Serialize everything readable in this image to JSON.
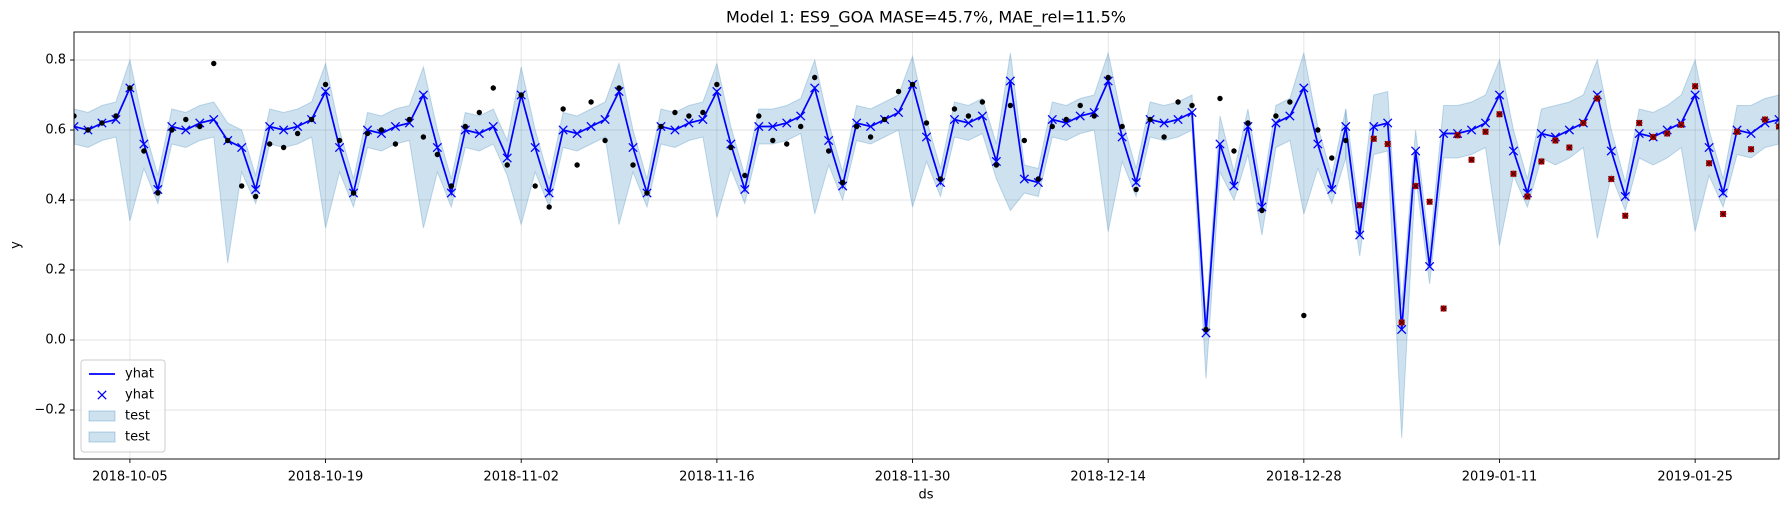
{
  "chart_data": {
    "type": "line",
    "title": "Model 1: ES9_GOA MASE=45.7%, MAE_rel=11.5%",
    "xlabel": "ds",
    "ylabel": "y",
    "grid": true,
    "x": [
      "2018-10-01",
      "2018-10-02",
      "2018-10-03",
      "2018-10-04",
      "2018-10-05",
      "2018-10-06",
      "2018-10-07",
      "2018-10-08",
      "2018-10-09",
      "2018-10-10",
      "2018-10-11",
      "2018-10-12",
      "2018-10-13",
      "2018-10-14",
      "2018-10-15",
      "2018-10-16",
      "2018-10-17",
      "2018-10-18",
      "2018-10-19",
      "2018-10-20",
      "2018-10-21",
      "2018-10-22",
      "2018-10-23",
      "2018-10-24",
      "2018-10-25",
      "2018-10-26",
      "2018-10-27",
      "2018-10-28",
      "2018-10-29",
      "2018-10-30",
      "2018-10-31",
      "2018-11-01",
      "2018-11-02",
      "2018-11-03",
      "2018-11-04",
      "2018-11-05",
      "2018-11-06",
      "2018-11-07",
      "2018-11-08",
      "2018-11-09",
      "2018-11-10",
      "2018-11-11",
      "2018-11-12",
      "2018-11-13",
      "2018-11-14",
      "2018-11-15",
      "2018-11-16",
      "2018-11-17",
      "2018-11-18",
      "2018-11-19",
      "2018-11-20",
      "2018-11-21",
      "2018-11-22",
      "2018-11-23",
      "2018-11-24",
      "2018-11-25",
      "2018-11-26",
      "2018-11-27",
      "2018-11-28",
      "2018-11-29",
      "2018-11-30",
      "2018-12-01",
      "2018-12-02",
      "2018-12-03",
      "2018-12-04",
      "2018-12-05",
      "2018-12-06",
      "2018-12-07",
      "2018-12-08",
      "2018-12-09",
      "2018-12-10",
      "2018-12-11",
      "2018-12-12",
      "2018-12-13",
      "2018-12-14",
      "2018-12-15",
      "2018-12-16",
      "2018-12-17",
      "2018-12-18",
      "2018-12-19",
      "2018-12-20",
      "2018-12-21",
      "2018-12-22",
      "2018-12-23",
      "2018-12-24",
      "2018-12-25",
      "2018-12-26",
      "2018-12-27",
      "2018-12-28",
      "2018-12-29",
      "2018-12-30",
      "2018-12-31",
      "2019-01-01",
      "2019-01-02",
      "2019-01-03",
      "2019-01-04",
      "2019-01-05",
      "2019-01-06",
      "2019-01-07",
      "2019-01-08",
      "2019-01-09",
      "2019-01-10",
      "2019-01-11",
      "2019-01-12",
      "2019-01-13",
      "2019-01-14",
      "2019-01-15",
      "2019-01-16",
      "2019-01-17",
      "2019-01-18",
      "2019-01-19",
      "2019-01-20",
      "2019-01-21",
      "2019-01-22",
      "2019-01-23",
      "2019-01-24",
      "2019-01-25",
      "2019-01-26",
      "2019-01-27",
      "2019-01-28",
      "2019-01-29",
      "2019-01-30",
      "2019-01-31"
    ],
    "xlim": [
      "2018-10-01",
      "2019-01-31"
    ],
    "xticks": [
      "2018-10-05",
      "2018-10-19",
      "2018-11-02",
      "2018-11-16",
      "2018-11-30",
      "2018-12-14",
      "2018-12-28",
      "2019-01-11",
      "2019-01-25"
    ],
    "ylim": [
      -0.34,
      0.88
    ],
    "yticks": [
      {
        "value": -0.2,
        "label": "−0.2"
      },
      {
        "value": 0,
        "label": "0.0"
      },
      0.2,
      0.4,
      0.6,
      0.8
    ],
    "legend": {
      "loc": "lower left",
      "labels": [
        "yhat",
        "yhat",
        "test",
        "test"
      ]
    },
    "forecast": {
      "color": "#0000ff",
      "values": [
        0.61,
        0.6,
        0.62,
        0.63,
        0.72,
        0.56,
        0.43,
        0.61,
        0.6,
        0.62,
        0.63,
        0.57,
        0.55,
        0.43,
        0.61,
        0.6,
        0.61,
        0.63,
        0.71,
        0.55,
        0.42,
        0.6,
        0.59,
        0.61,
        0.62,
        0.7,
        0.55,
        0.42,
        0.6,
        0.59,
        0.61,
        0.52,
        0.7,
        0.55,
        0.42,
        0.6,
        0.59,
        0.61,
        0.63,
        0.71,
        0.55,
        0.42,
        0.61,
        0.6,
        0.62,
        0.63,
        0.71,
        0.56,
        0.43,
        0.61,
        0.61,
        0.62,
        0.64,
        0.72,
        0.57,
        0.44,
        0.62,
        0.61,
        0.63,
        0.65,
        0.73,
        0.58,
        0.45,
        0.63,
        0.62,
        0.64,
        0.51,
        0.74,
        0.46,
        0.45,
        0.63,
        0.62,
        0.64,
        0.65,
        0.74,
        0.58,
        0.45,
        0.63,
        0.62,
        0.63,
        0.65,
        0.02,
        0.56,
        0.44,
        0.61,
        0.38,
        0.62,
        0.64,
        0.72,
        0.56,
        0.43,
        0.61,
        0.3,
        0.61,
        0.62,
        0.03,
        0.54,
        0.21,
        0.59,
        0.59,
        0.6,
        0.62,
        0.7,
        0.54,
        0.42,
        0.59,
        0.58,
        0.6,
        0.62,
        0.7,
        0.54,
        0.41,
        0.59,
        0.58,
        0.6,
        0.62,
        0.7,
        0.55,
        0.42,
        0.6,
        0.59,
        0.62,
        0.63
      ]
    },
    "bands": [
      {
        "color": "#1f77b4",
        "upper": [
          0.66,
          0.65,
          0.67,
          0.68,
          0.8,
          0.61,
          0.47,
          0.66,
          0.65,
          0.67,
          0.68,
          0.62,
          0.6,
          0.47,
          0.66,
          0.65,
          0.66,
          0.68,
          0.79,
          0.6,
          0.46,
          0.65,
          0.64,
          0.66,
          0.67,
          0.78,
          0.6,
          0.46,
          0.65,
          0.64,
          0.66,
          0.57,
          0.78,
          0.6,
          0.46,
          0.65,
          0.64,
          0.66,
          0.68,
          0.79,
          0.6,
          0.46,
          0.66,
          0.65,
          0.67,
          0.68,
          0.79,
          0.61,
          0.47,
          0.66,
          0.66,
          0.67,
          0.69,
          0.8,
          0.62,
          0.48,
          0.67,
          0.66,
          0.68,
          0.7,
          0.81,
          0.63,
          0.49,
          0.68,
          0.67,
          0.69,
          0.56,
          0.82,
          0.5,
          0.49,
          0.68,
          0.67,
          0.69,
          0.7,
          0.82,
          0.63,
          0.49,
          0.68,
          0.67,
          0.68,
          0.7,
          0.06,
          0.64,
          0.48,
          0.66,
          0.42,
          0.67,
          0.69,
          0.82,
          0.61,
          0.47,
          0.66,
          null,
          null,
          null,
          null,
          null,
          null,
          null,
          null,
          null,
          null,
          null,
          null,
          null,
          null,
          null,
          null,
          null,
          null,
          null,
          null,
          null,
          null,
          null,
          null,
          null,
          null,
          null,
          null,
          null,
          null,
          null
        ],
        "lower": [
          0.56,
          0.55,
          0.57,
          0.58,
          0.34,
          0.49,
          0.39,
          0.56,
          0.55,
          0.57,
          0.58,
          0.22,
          0.48,
          0.39,
          0.56,
          0.55,
          0.56,
          0.58,
          0.32,
          0.48,
          0.38,
          0.55,
          0.54,
          0.56,
          0.57,
          0.32,
          0.48,
          0.38,
          0.55,
          0.54,
          0.56,
          0.47,
          0.33,
          0.48,
          0.38,
          0.55,
          0.54,
          0.56,
          0.58,
          0.33,
          0.48,
          0.38,
          0.56,
          0.55,
          0.57,
          0.58,
          0.35,
          0.49,
          0.39,
          0.56,
          0.56,
          0.57,
          0.59,
          0.36,
          0.5,
          0.4,
          0.57,
          0.56,
          0.58,
          0.6,
          0.38,
          0.51,
          0.41,
          0.58,
          0.57,
          0.59,
          0.46,
          0.37,
          0.42,
          0.41,
          0.58,
          0.57,
          0.59,
          0.6,
          0.31,
          0.51,
          0.41,
          0.58,
          0.57,
          0.58,
          0.6,
          -0.11,
          0.48,
          0.4,
          0.53,
          0.3,
          0.55,
          0.57,
          0.36,
          0.49,
          0.39,
          0.52,
          null,
          null,
          null,
          null,
          null,
          null,
          null,
          null,
          null,
          null,
          null,
          null,
          null,
          null,
          null,
          null,
          null,
          null,
          null,
          null,
          null,
          null,
          null,
          null,
          null,
          null,
          null,
          null,
          null,
          null,
          null
        ]
      },
      {
        "color": "#1f77b4",
        "upper": [
          null,
          null,
          null,
          null,
          null,
          null,
          null,
          null,
          null,
          null,
          null,
          null,
          null,
          null,
          null,
          null,
          null,
          null,
          null,
          null,
          null,
          null,
          null,
          null,
          null,
          null,
          null,
          null,
          null,
          null,
          null,
          null,
          null,
          null,
          null,
          null,
          null,
          null,
          null,
          null,
          null,
          null,
          null,
          null,
          null,
          null,
          null,
          null,
          null,
          null,
          null,
          null,
          null,
          null,
          null,
          null,
          null,
          null,
          null,
          null,
          null,
          null,
          null,
          null,
          null,
          null,
          null,
          null,
          null,
          null,
          null,
          null,
          null,
          null,
          null,
          null,
          null,
          null,
          null,
          null,
          null,
          null,
          null,
          null,
          null,
          null,
          null,
          null,
          null,
          null,
          null,
          0.66,
          0.36,
          0.7,
          0.71,
          0.1,
          0.6,
          0.26,
          0.67,
          0.67,
          0.68,
          0.7,
          0.8,
          0.6,
          0.46,
          0.66,
          0.67,
          0.68,
          0.7,
          0.8,
          0.6,
          0.45,
          0.66,
          0.65,
          0.67,
          0.7,
          0.8,
          0.6,
          0.46,
          0.67,
          0.67,
          0.69,
          0.7
        ],
        "lower": [
          null,
          null,
          null,
          null,
          null,
          null,
          null,
          null,
          null,
          null,
          null,
          null,
          null,
          null,
          null,
          null,
          null,
          null,
          null,
          null,
          null,
          null,
          null,
          null,
          null,
          null,
          null,
          null,
          null,
          null,
          null,
          null,
          null,
          null,
          null,
          null,
          null,
          null,
          null,
          null,
          null,
          null,
          null,
          null,
          null,
          null,
          null,
          null,
          null,
          null,
          null,
          null,
          null,
          null,
          null,
          null,
          null,
          null,
          null,
          null,
          null,
          null,
          null,
          null,
          null,
          null,
          null,
          null,
          null,
          null,
          null,
          null,
          null,
          null,
          null,
          null,
          null,
          null,
          null,
          null,
          null,
          null,
          null,
          null,
          null,
          null,
          null,
          null,
          null,
          null,
          null,
          0.52,
          0.24,
          0.53,
          0.54,
          -0.28,
          0.47,
          0.16,
          0.52,
          0.52,
          0.53,
          0.55,
          0.27,
          0.47,
          0.38,
          0.52,
          0.5,
          0.52,
          0.55,
          0.29,
          0.47,
          0.37,
          0.52,
          0.5,
          0.52,
          0.55,
          0.31,
          0.47,
          0.38,
          0.53,
          0.52,
          0.55,
          0.56
        ]
      }
    ],
    "actual": {
      "color": "#000000",
      "values": [
        0.64,
        0.6,
        0.62,
        0.64,
        0.72,
        0.54,
        0.42,
        0.6,
        0.63,
        0.61,
        0.79,
        0.57,
        0.44,
        0.41,
        0.56,
        0.55,
        0.59,
        0.63,
        0.73,
        0.57,
        0.42,
        0.59,
        0.6,
        0.56,
        0.63,
        0.58,
        0.53,
        0.44,
        0.61,
        0.65,
        0.72,
        0.5,
        0.7,
        0.44,
        0.38,
        0.66,
        0.5,
        0.68,
        0.57,
        0.72,
        0.5,
        0.42,
        0.61,
        0.65,
        0.64,
        0.65,
        0.73,
        0.55,
        0.47,
        0.64,
        0.57,
        0.56,
        0.61,
        0.75,
        0.54,
        0.45,
        0.61,
        0.58,
        0.63,
        0.71,
        0.73,
        0.62,
        0.46,
        0.66,
        0.64,
        0.68,
        0.5,
        0.67,
        0.57,
        0.46,
        0.61,
        0.63,
        0.67,
        0.64,
        0.75,
        0.61,
        0.43,
        0.63,
        0.58,
        0.68,
        0.67,
        0.03,
        0.69,
        0.54,
        0.62,
        0.37,
        0.64,
        0.68,
        0.07,
        0.6,
        0.52,
        0.57,
        null,
        null,
        null,
        null,
        null,
        null,
        null,
        null,
        null,
        null,
        null,
        null,
        null,
        null,
        null,
        null,
        null,
        null,
        null,
        null,
        null,
        null,
        null,
        null,
        null,
        null,
        null,
        null,
        null,
        null,
        null
      ]
    },
    "actual_test": {
      "color": "#cc0000",
      "values": [
        null,
        null,
        null,
        null,
        null,
        null,
        null,
        null,
        null,
        null,
        null,
        null,
        null,
        null,
        null,
        null,
        null,
        null,
        null,
        null,
        null,
        null,
        null,
        null,
        null,
        null,
        null,
        null,
        null,
        null,
        null,
        null,
        null,
        null,
        null,
        null,
        null,
        null,
        null,
        null,
        null,
        null,
        null,
        null,
        null,
        null,
        null,
        null,
        null,
        null,
        null,
        null,
        null,
        null,
        null,
        null,
        null,
        null,
        null,
        null,
        null,
        null,
        null,
        null,
        null,
        null,
        null,
        null,
        null,
        null,
        null,
        null,
        null,
        null,
        null,
        null,
        null,
        null,
        null,
        null,
        null,
        null,
        null,
        null,
        null,
        null,
        null,
        null,
        null,
        null,
        null,
        null,
        0.385,
        0.575,
        0.56,
        0.05,
        0.44,
        0.395,
        0.09,
        0.585,
        0.515,
        0.595,
        0.645,
        0.475,
        0.41,
        0.51,
        0.57,
        0.55,
        0.62,
        0.69,
        0.46,
        0.355,
        0.62,
        0.58,
        0.59,
        0.615,
        0.725,
        0.505,
        0.36,
        0.595,
        0.545,
        0.63,
        0.61
      ]
    }
  }
}
